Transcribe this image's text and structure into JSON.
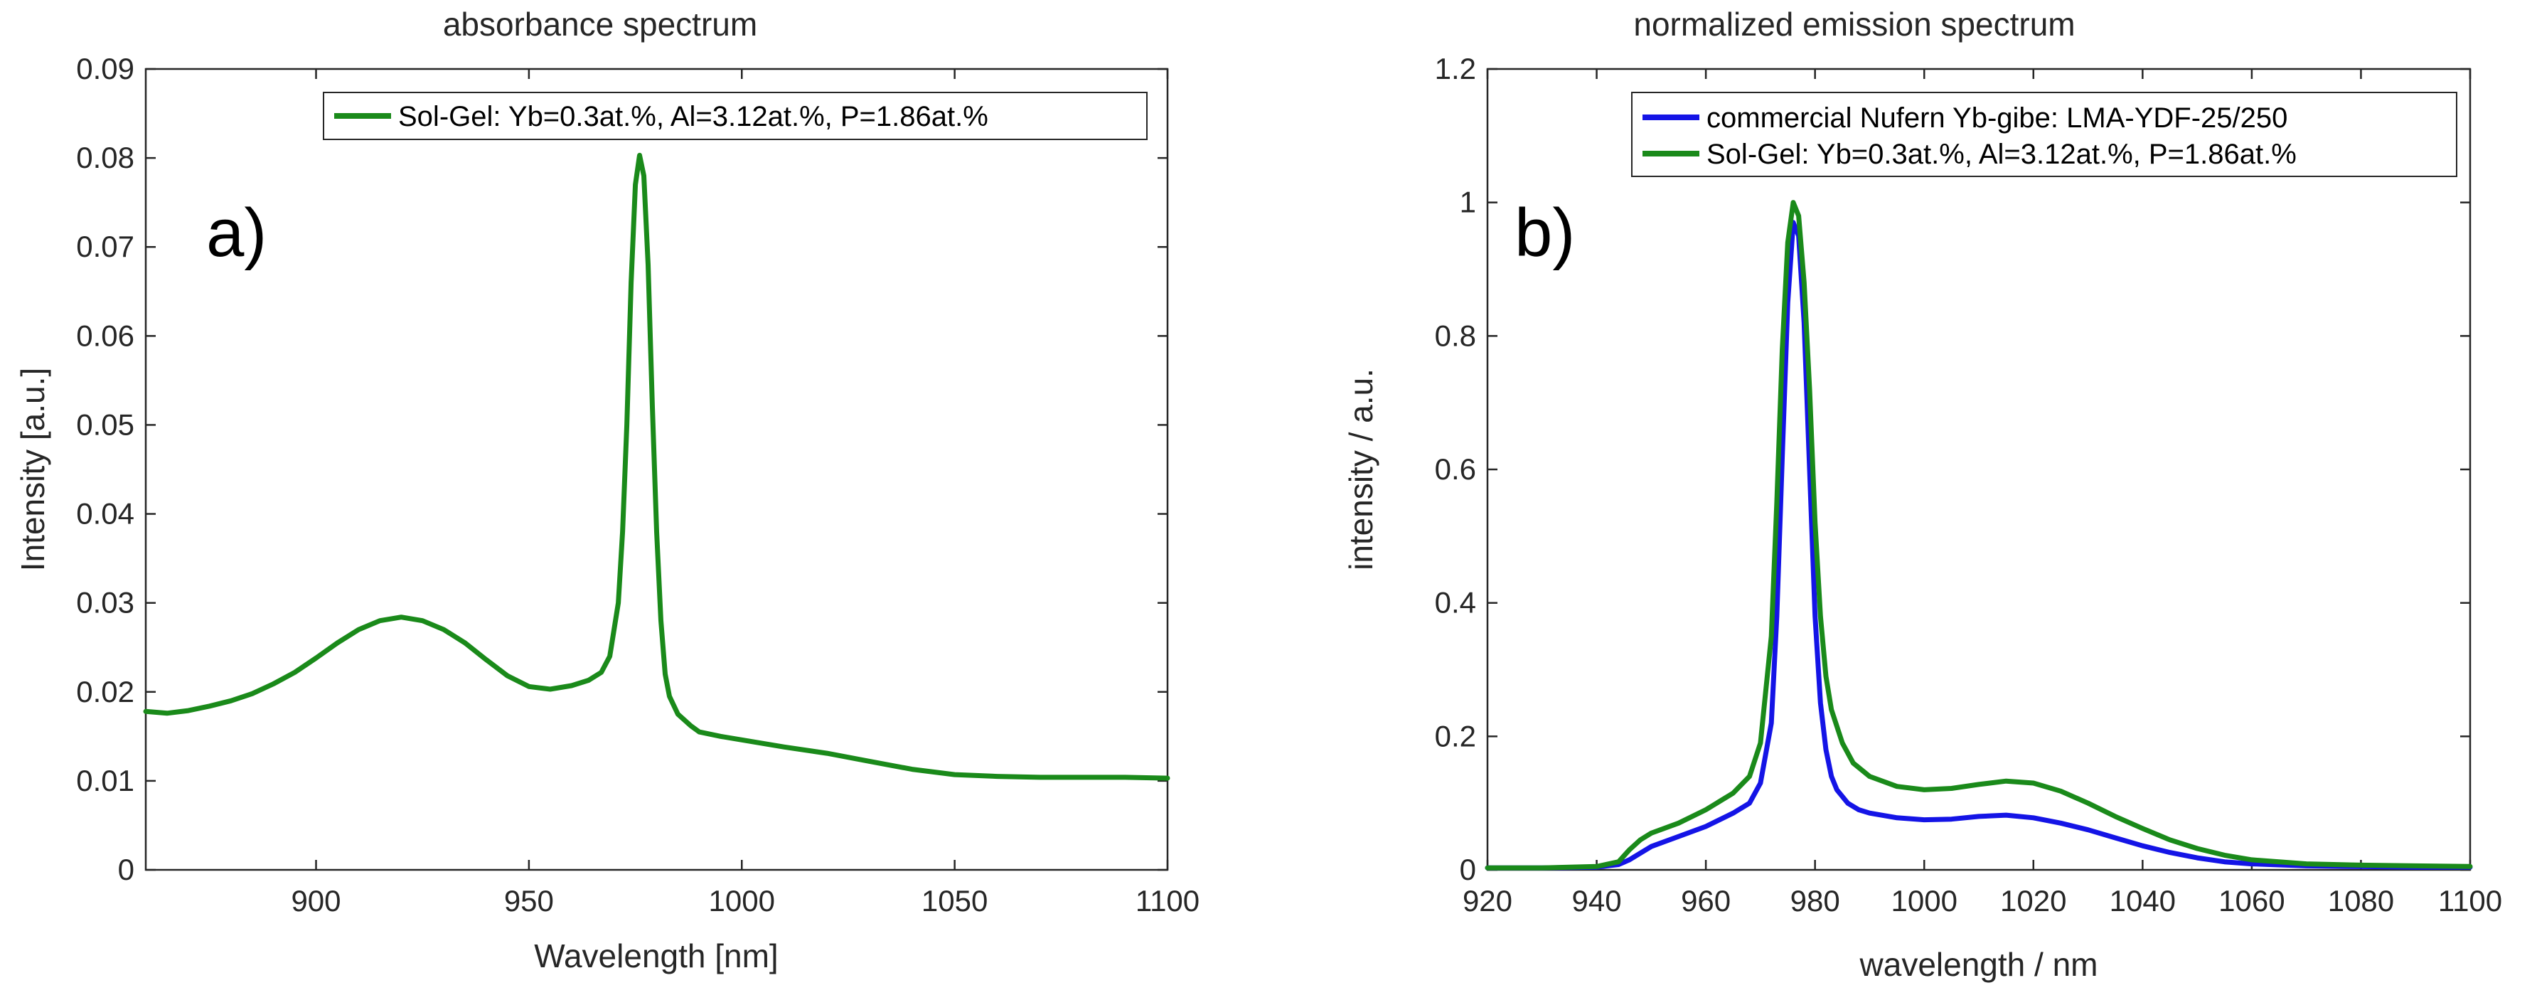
{
  "chart_data": [
    {
      "type": "line",
      "panel_label": "a)",
      "title": "absorbance spectrum",
      "xlabel": "Wavelength [nm]",
      "ylabel": "Intensity [a.u.]",
      "xlim": [
        860,
        1100
      ],
      "ylim": [
        0,
        0.09
      ],
      "xticks": [
        900,
        950,
        1000,
        1050,
        1100
      ],
      "xtick_labels": [
        "900",
        "950",
        "1000",
        "1050",
        "1100"
      ],
      "yticks": [
        0,
        0.01,
        0.02,
        0.03,
        0.04,
        0.05,
        0.06,
        0.07,
        0.08,
        0.09
      ],
      "ytick_labels": [
        "0",
        "0.01",
        "0.02",
        "0.03",
        "0.04",
        "0.05",
        "0.06",
        "0.07",
        "0.08",
        "0.09"
      ],
      "legend_position": "top-right",
      "series": [
        {
          "name": "Sol-Gel: Yb=0.3at.%, Al=3.12at.%, P=1.86at.%",
          "color": "#1a8a1a",
          "x": [
            860,
            865,
            870,
            875,
            880,
            885,
            890,
            895,
            900,
            905,
            910,
            915,
            920,
            925,
            930,
            935,
            940,
            945,
            950,
            955,
            960,
            964,
            967,
            969,
            971,
            972,
            973,
            974,
            975,
            976,
            977,
            978,
            979,
            980,
            981,
            982,
            983,
            985,
            988,
            990,
            995,
            1000,
            1010,
            1020,
            1030,
            1040,
            1050,
            1060,
            1070,
            1080,
            1090,
            1100
          ],
          "y": [
            0.0178,
            0.0176,
            0.0179,
            0.0184,
            0.019,
            0.0198,
            0.0209,
            0.0222,
            0.0238,
            0.0255,
            0.027,
            0.028,
            0.0284,
            0.028,
            0.027,
            0.0255,
            0.0236,
            0.0218,
            0.0206,
            0.0203,
            0.0207,
            0.0213,
            0.0222,
            0.024,
            0.03,
            0.038,
            0.05,
            0.066,
            0.077,
            0.0803,
            0.078,
            0.068,
            0.052,
            0.038,
            0.028,
            0.022,
            0.0195,
            0.0175,
            0.0162,
            0.0155,
            0.015,
            0.0146,
            0.0138,
            0.0131,
            0.0122,
            0.0113,
            0.0107,
            0.0105,
            0.0104,
            0.0104,
            0.0104,
            0.0103
          ]
        }
      ]
    },
    {
      "type": "line",
      "panel_label": "b)",
      "title": "normalized emission spectrum",
      "xlabel": "wavelength / nm",
      "ylabel": "intensity / a.u.",
      "xlim": [
        920,
        1100
      ],
      "ylim": [
        0,
        1.2
      ],
      "xticks": [
        920,
        940,
        960,
        980,
        1000,
        1020,
        1040,
        1060,
        1080,
        1100
      ],
      "xtick_labels": [
        "920",
        "940",
        "960",
        "980",
        "1000",
        "1020",
        "1040",
        "1060",
        "1080",
        "1100"
      ],
      "yticks": [
        0,
        0.2,
        0.4,
        0.6,
        0.8,
        1,
        1.2
      ],
      "ytick_labels": [
        "0",
        "0.2",
        "0.4",
        "0.6",
        "0.8",
        "1",
        "1.2"
      ],
      "legend_position": "top-right",
      "series": [
        {
          "name": "commercial Nufern Yb-gibe: LMA-YDF-25/250",
          "color": "#1414e6",
          "x": [
            920,
            930,
            940,
            944,
            946,
            948,
            950,
            955,
            960,
            965,
            968,
            970,
            972,
            973,
            974,
            975,
            976,
            977,
            978,
            979,
            980,
            981,
            982,
            983,
            984,
            986,
            988,
            990,
            995,
            1000,
            1005,
            1010,
            1015,
            1020,
            1025,
            1030,
            1035,
            1040,
            1045,
            1050,
            1055,
            1060,
            1070,
            1080,
            1090,
            1100
          ],
          "y": [
            0.003,
            0.003,
            0.004,
            0.008,
            0.015,
            0.025,
            0.035,
            0.05,
            0.065,
            0.085,
            0.1,
            0.13,
            0.22,
            0.38,
            0.62,
            0.85,
            0.97,
            0.95,
            0.82,
            0.6,
            0.38,
            0.25,
            0.18,
            0.14,
            0.12,
            0.1,
            0.09,
            0.085,
            0.078,
            0.075,
            0.076,
            0.08,
            0.082,
            0.078,
            0.07,
            0.06,
            0.048,
            0.036,
            0.026,
            0.018,
            0.012,
            0.009,
            0.006,
            0.005,
            0.004,
            0.004
          ]
        },
        {
          "name": "Sol-Gel: Yb=0.3at.%, Al=3.12at.%, P=1.86at.%",
          "color": "#1a8a1a",
          "x": [
            920,
            930,
            940,
            944,
            946,
            948,
            950,
            955,
            960,
            965,
            968,
            970,
            972,
            973,
            974,
            975,
            976,
            977,
            978,
            979,
            980,
            981,
            982,
            983,
            985,
            987,
            990,
            995,
            1000,
            1005,
            1010,
            1015,
            1020,
            1025,
            1030,
            1035,
            1040,
            1045,
            1050,
            1055,
            1060,
            1070,
            1080,
            1090,
            1100
          ],
          "y": [
            0.003,
            0.003,
            0.005,
            0.012,
            0.03,
            0.045,
            0.055,
            0.07,
            0.09,
            0.115,
            0.14,
            0.19,
            0.35,
            0.55,
            0.78,
            0.94,
            1.0,
            0.98,
            0.88,
            0.72,
            0.52,
            0.38,
            0.29,
            0.24,
            0.19,
            0.16,
            0.14,
            0.125,
            0.12,
            0.122,
            0.128,
            0.133,
            0.13,
            0.118,
            0.1,
            0.08,
            0.062,
            0.045,
            0.032,
            0.022,
            0.015,
            0.009,
            0.007,
            0.006,
            0.005
          ]
        }
      ]
    }
  ]
}
